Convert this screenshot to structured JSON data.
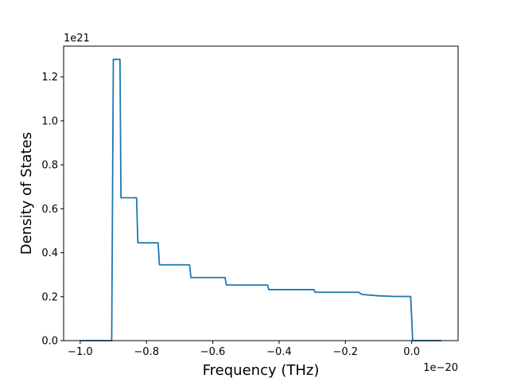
{
  "chart_data": {
    "type": "line",
    "xlabel": "Frequency (THz)",
    "ylabel": "Density of States",
    "x_offset_text": "1e−20",
    "y_offset_text": "1e21",
    "xlim": [
      -1.05,
      0.14
    ],
    "ylim": [
      0,
      1.34
    ],
    "x_ticks": [
      -1.0,
      -0.8,
      -0.6,
      -0.4,
      -0.2,
      0.0
    ],
    "x_tick_labels": [
      "−1.0",
      "−0.8",
      "−0.6",
      "−0.4",
      "−0.2",
      "0.0"
    ],
    "y_ticks": [
      0.0,
      0.2,
      0.4,
      0.6,
      0.8,
      1.0,
      1.2
    ],
    "y_tick_labels": [
      "0.0",
      "0.2",
      "0.4",
      "0.6",
      "0.8",
      "1.0",
      "1.2"
    ],
    "grid": false,
    "series": [
      {
        "color": "#1f77b4",
        "x": [
          -1.0,
          -0.905,
          -0.9,
          -0.9,
          -0.88,
          -0.877,
          -0.83,
          -0.826,
          -0.765,
          -0.761,
          -0.67,
          -0.666,
          -0.563,
          -0.559,
          -0.435,
          -0.431,
          -0.295,
          -0.291,
          -0.16,
          -0.15,
          -0.1,
          -0.05,
          -0.003,
          0.0,
          0.003,
          0.09
        ],
        "y": [
          0,
          0,
          1.28,
          1.28,
          1.28,
          0.65,
          0.65,
          0.445,
          0.445,
          0.345,
          0.345,
          0.287,
          0.287,
          0.253,
          0.253,
          0.232,
          0.232,
          0.22,
          0.22,
          0.21,
          0.204,
          0.201,
          0.201,
          0.1,
          0,
          0
        ]
      }
    ]
  }
}
